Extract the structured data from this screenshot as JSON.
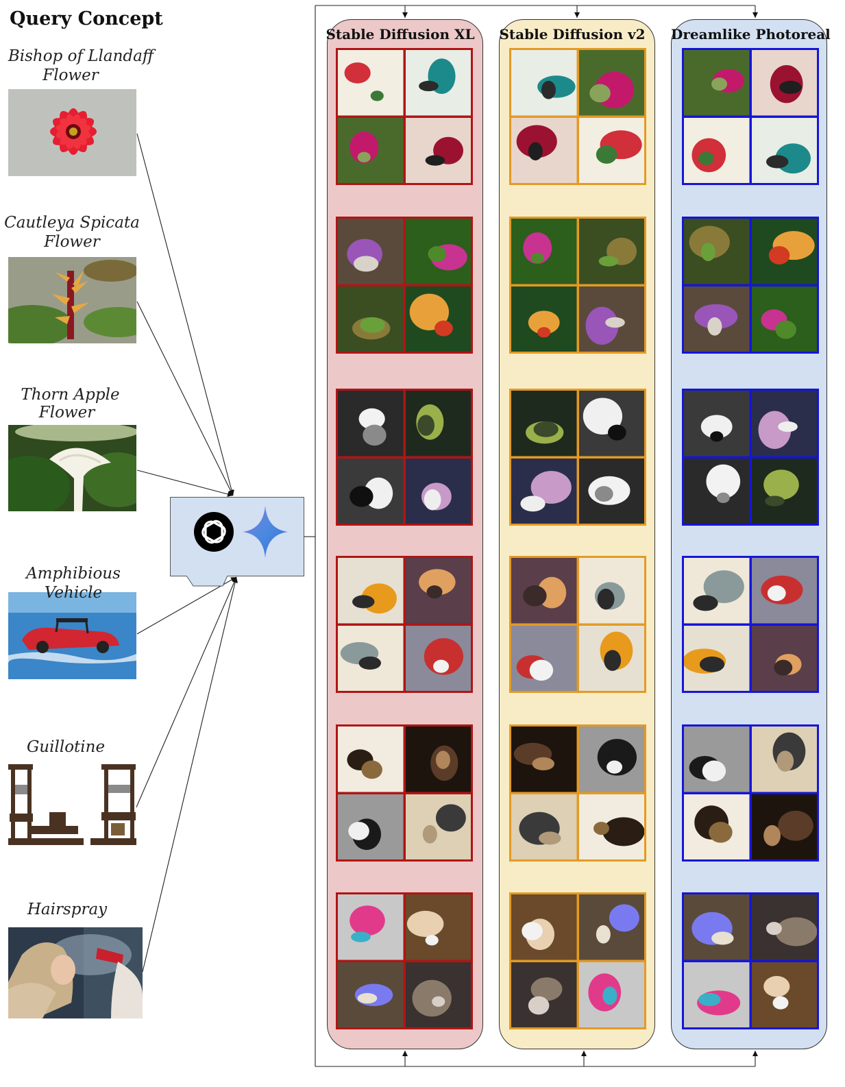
{
  "header": "Query Concept",
  "concepts": [
    {
      "label_lines": [
        "Bishop of Llandaff",
        "Flower"
      ],
      "photo_icon": "red-dahlia-photo"
    },
    {
      "label_lines": [
        "Cautleya Spicata",
        "Flower"
      ],
      "photo_icon": "cautleya-spicata-photo"
    },
    {
      "label_lines": [
        "Thorn Apple",
        "Flower"
      ],
      "photo_icon": "thorn-apple-photo"
    },
    {
      "label_lines": [
        "Amphibious Vehicle"
      ],
      "photo_icon": "amphibious-vehicle-photo"
    },
    {
      "label_lines": [
        "Guillotine"
      ],
      "photo_icon": "guillotine-photo"
    },
    {
      "label_lines": [
        "Hairspray"
      ],
      "photo_icon": "hairspray-photo"
    }
  ],
  "llm_icons": [
    "openai-logo-icon",
    "gemini-sparkle-icon"
  ],
  "models": [
    {
      "name": "Stable Diffusion XL",
      "fill": "#ecc8c9",
      "frame": "#b01515"
    },
    {
      "name": "Stable Diffusion v2",
      "fill": "#f8ecc6",
      "frame": "#e39a24"
    },
    {
      "name": "Dreamlike Photoreal",
      "fill": "#d3e0f2",
      "frame": "#1515d8"
    }
  ],
  "palettes": [
    [
      [
        "#f3eee2",
        "#d12f3a",
        "#3a7a36"
      ],
      [
        "#e8ede6",
        "#1c8a8a",
        "#2b2b2b"
      ],
      [
        "#4a6a2c",
        "#c2196b",
        "#8aa35a"
      ],
      [
        "#e8d6cc",
        "#9b1231",
        "#1f1f1f"
      ]
    ],
    [
      [
        "#5a4a3c",
        "#9a55b8",
        "#d8d2c8"
      ],
      [
        "#2c5e1c",
        "#c83290",
        "#4e8a2a"
      ],
      [
        "#3a4e22",
        "#8a7a3a",
        "#6aa03a"
      ],
      [
        "#1f4a20",
        "#e8a13a",
        "#d23a22"
      ]
    ],
    [
      [
        "#2a2a2a",
        "#f2f2f2",
        "#8a8a8a"
      ],
      [
        "#1e2a1e",
        "#9ab04a",
        "#3a4a2a"
      ],
      [
        "#3a3a3a",
        "#f0f0f0",
        "#101010"
      ],
      [
        "#2a2e4a",
        "#c89ac8",
        "#eeeeee"
      ]
    ],
    [
      [
        "#e6e0d2",
        "#e89a1c",
        "#2b2b2b"
      ],
      [
        "#5a3e4a",
        "#e0a060",
        "#3a2a2a"
      ],
      [
        "#efe8d8",
        "#8a9a9a",
        "#2a2a2a"
      ],
      [
        "#8a8a9a",
        "#c83030",
        "#f2f2f2"
      ]
    ],
    [
      [
        "#f2ece0",
        "#2a1e14",
        "#8a6a3c"
      ],
      [
        "#1e140e",
        "#5a3c28",
        "#b0865a"
      ],
      [
        "#9a9a9a",
        "#1a1a1a",
        "#f0f0f0"
      ],
      [
        "#ddd0b4",
        "#3a3a3a",
        "#b09a7a"
      ]
    ],
    [
      [
        "#c8c8c8",
        "#e23a8a",
        "#3ab0c8"
      ],
      [
        "#6a4a2a",
        "#e8d0b0",
        "#f2f2f2"
      ],
      [
        "#5a4a3a",
        "#7a7af0",
        "#e8e0d0"
      ],
      [
        "#3a3230",
        "#8a7a6a",
        "#d8d0c8"
      ]
    ]
  ]
}
